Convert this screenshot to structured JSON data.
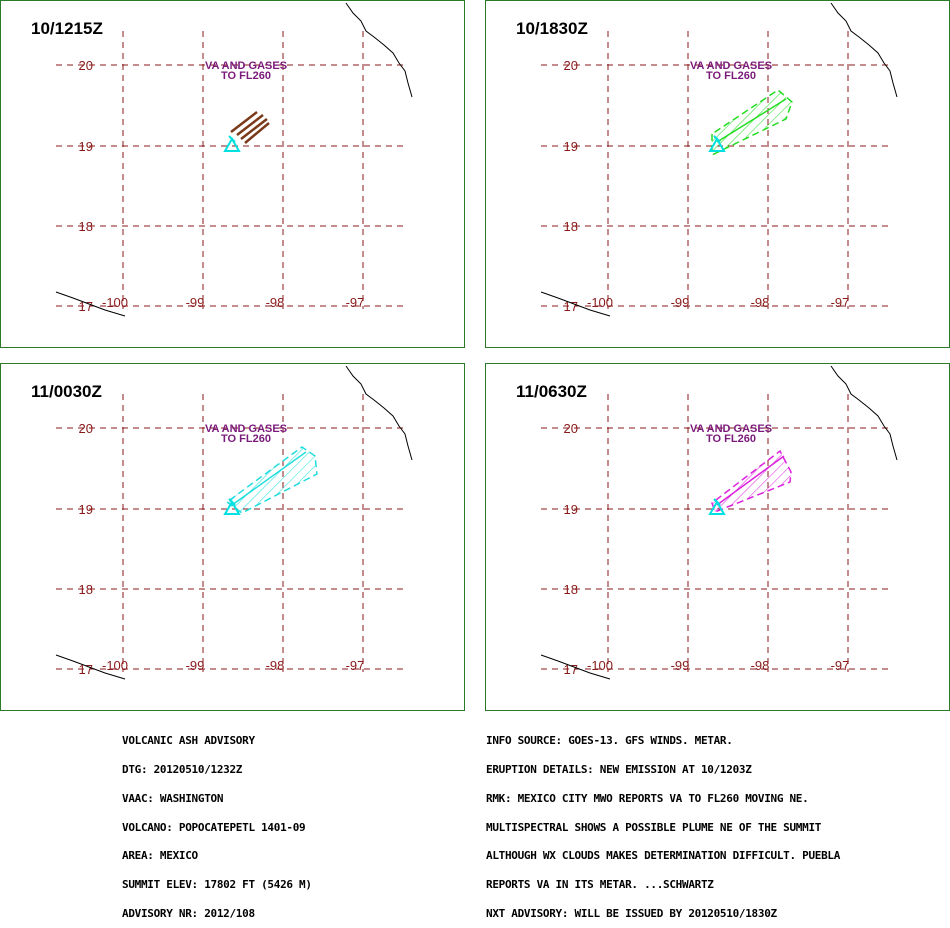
{
  "panels": [
    {
      "id": "p1",
      "time": "10/1215Z",
      "color": "#7a3a1a",
      "plume": "streaks",
      "label1": "VA AND GASES",
      "label2": "TO FL260"
    },
    {
      "id": "p2",
      "time": "10/1830Z",
      "color": "#22dd22",
      "plume": "polygon",
      "label1": "VA AND GASES",
      "label2": "TO FL260"
    },
    {
      "id": "p3",
      "time": "11/0030Z",
      "color": "#22dddd",
      "plume": "polygon",
      "label1": "VA AND GASES",
      "label2": "TO FL260"
    },
    {
      "id": "p4",
      "time": "11/0630Z",
      "color": "#dd22dd",
      "plume": "polygon",
      "label1": "VA AND GASES",
      "label2": "TO FL260"
    }
  ],
  "map": {
    "lat_labels": [
      "20",
      "19",
      "18",
      "17"
    ],
    "lon_labels": [
      "-100",
      "-99",
      "-98",
      "-97"
    ],
    "grid_color": "#8a1a1a",
    "volcano_color": "#00e0e0",
    "label_color": "#7a1a7a"
  },
  "advisory_left": [
    "VOLCANIC ASH ADVISORY",
    "DTG: 20120510/1232Z",
    "VAAC: WASHINGTON",
    "VOLCANO: POPOCATEPETL 1401-09",
    "AREA: MEXICO",
    "SUMMIT ELEV: 17802 FT (5426 M)",
    "ADVISORY NR: 2012/108"
  ],
  "advisory_right": [
    "INFO SOURCE: GOES-13. GFS WINDS. METAR.",
    "ERUPTION DETAILS: NEW EMISSION AT 10/1203Z",
    "RMK: MEXICO CITY MWO REPORTS VA TO FL260 MOVING NE.",
    "MULTISPECTRAL SHOWS A POSSIBLE PLUME NE OF THE SUMMIT",
    "ALTHOUGH WX CLOUDS MAKES DETERMINATION DIFFICULT. PUEBLA",
    "REPORTS VA IN ITS METAR. ...SCHWARTZ",
    "NXT ADVISORY: WILL BE ISSUED BY 20120510/1830Z"
  ]
}
